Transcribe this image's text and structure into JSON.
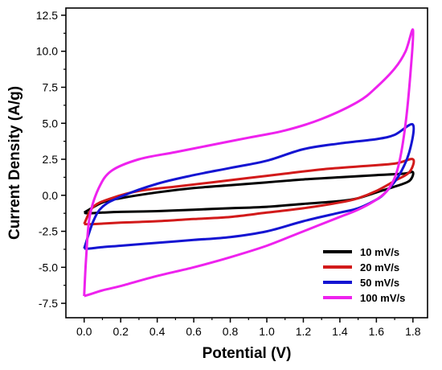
{
  "chart_data": {
    "type": "line",
    "title": "",
    "xlabel": "Potential (V)",
    "ylabel": "Current Density (A/g)",
    "xlim": [
      -0.1,
      1.88
    ],
    "ylim": [
      -8.5,
      13.0
    ],
    "xticks": [
      "0.0",
      "0.2",
      "0.4",
      "0.6",
      "0.8",
      "1.0",
      "1.2",
      "1.4",
      "1.6",
      "1.8"
    ],
    "xtick_values": [
      0,
      0.2,
      0.4,
      0.6,
      0.8,
      1.0,
      1.2,
      1.4,
      1.6,
      1.8
    ],
    "yticks": [
      "12.5",
      "10.0",
      "7.5",
      "5.0",
      "2.5",
      "0.0",
      "-2.5",
      "-5.0",
      "-7.5"
    ],
    "ytick_values": [
      12.5,
      10.0,
      7.5,
      5.0,
      2.5,
      0.0,
      -2.5,
      -5.0,
      -7.5
    ],
    "grid": false,
    "legend_position": "bottom-right",
    "series": [
      {
        "name": "10 mV/s",
        "color": "#000000",
        "x": [
          0.0,
          0.1,
          0.2,
          0.4,
          0.6,
          0.8,
          1.0,
          1.2,
          1.4,
          1.6,
          1.75,
          1.8,
          1.78,
          1.7,
          1.6,
          1.5,
          1.4,
          1.2,
          1.0,
          0.8,
          0.6,
          0.4,
          0.2,
          0.1,
          0.02,
          0.0
        ],
        "y": [
          -1.2,
          -0.5,
          -0.2,
          0.2,
          0.5,
          0.7,
          0.9,
          1.1,
          1.25,
          1.4,
          1.5,
          1.6,
          1.0,
          0.6,
          0.2,
          -0.2,
          -0.4,
          -0.6,
          -0.8,
          -0.9,
          -1.0,
          -1.1,
          -1.15,
          -1.2,
          -1.25,
          -1.2
        ]
      },
      {
        "name": "20 mV/s",
        "color": "#d21a1a",
        "x": [
          0.0,
          0.05,
          0.15,
          0.3,
          0.5,
          0.7,
          0.9,
          1.1,
          1.3,
          1.5,
          1.7,
          1.8,
          1.78,
          1.7,
          1.6,
          1.5,
          1.4,
          1.2,
          1.0,
          0.8,
          0.6,
          0.4,
          0.2,
          0.05,
          0.0
        ],
        "y": [
          -2.0,
          -0.8,
          -0.2,
          0.3,
          0.6,
          0.9,
          1.2,
          1.5,
          1.8,
          2.0,
          2.2,
          2.5,
          1.6,
          1.0,
          0.3,
          -0.2,
          -0.5,
          -0.9,
          -1.2,
          -1.5,
          -1.65,
          -1.8,
          -1.9,
          -2.0,
          -2.0
        ]
      },
      {
        "name": "50 mV/s",
        "color": "#1414d2",
        "x": [
          0.0,
          0.05,
          0.1,
          0.2,
          0.4,
          0.6,
          0.8,
          1.0,
          1.2,
          1.4,
          1.6,
          1.7,
          1.8,
          1.78,
          1.72,
          1.65,
          1.6,
          1.5,
          1.4,
          1.2,
          1.0,
          0.8,
          0.6,
          0.4,
          0.2,
          0.1,
          0.03,
          0.0
        ],
        "y": [
          -3.7,
          -1.8,
          -0.8,
          -0.1,
          0.8,
          1.4,
          1.9,
          2.4,
          3.2,
          3.6,
          3.9,
          4.2,
          4.9,
          3.0,
          1.3,
          0.2,
          -0.3,
          -0.9,
          -1.2,
          -1.8,
          -2.5,
          -2.9,
          -3.1,
          -3.3,
          -3.5,
          -3.6,
          -3.7,
          -3.7
        ]
      },
      {
        "name": "100 mV/s",
        "color": "#ee22ee",
        "x": [
          0.0,
          0.01,
          0.03,
          0.08,
          0.15,
          0.3,
          0.5,
          0.7,
          0.9,
          1.1,
          1.3,
          1.5,
          1.6,
          1.7,
          1.76,
          1.8,
          1.79,
          1.76,
          1.72,
          1.67,
          1.6,
          1.5,
          1.4,
          1.2,
          1.0,
          0.8,
          0.6,
          0.4,
          0.2,
          0.1,
          0.05,
          0.0
        ],
        "y": [
          -7.0,
          -4.5,
          -1.5,
          0.5,
          1.7,
          2.5,
          3.0,
          3.5,
          4.0,
          4.5,
          5.3,
          6.5,
          7.5,
          8.8,
          10.0,
          11.5,
          9.0,
          5.0,
          2.0,
          0.5,
          -0.3,
          -1.0,
          -1.5,
          -2.5,
          -3.5,
          -4.3,
          -5.0,
          -5.6,
          -6.3,
          -6.6,
          -6.8,
          -7.0
        ]
      }
    ]
  }
}
